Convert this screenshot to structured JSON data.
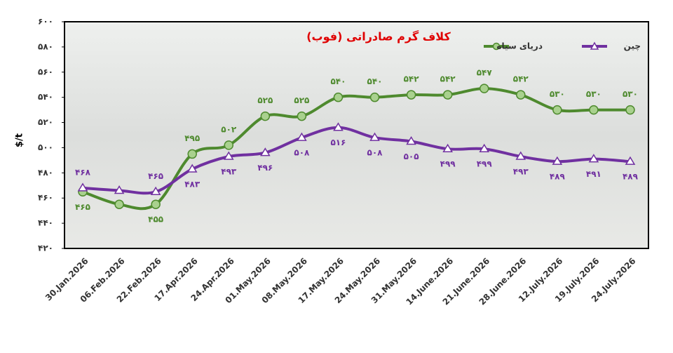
{
  "chart_data": {
    "type": "line",
    "title": "کلاف گرم صادراتی (فوب)",
    "y_label": "$/t",
    "categories": [
      "30.Jan.2026",
      "06.Feb.2026",
      "22.Feb.2026",
      "17.Apr.2026",
      "24.Apr.2026",
      "01.May.2026",
      "08.May.2026",
      "17.May.2026",
      "24.May.2026",
      "31.May.2026",
      "14.June.2026",
      "21.June.2026",
      "28.June.2026",
      "12.July.2026",
      "19.July.2026",
      "24.July.2026"
    ],
    "series": [
      {
        "name": "دریای سیاه",
        "color": "#4e8a2e",
        "marker": "circle",
        "values": [
          465,
          455,
          455,
          495,
          502,
          525,
          525,
          540,
          540,
          542,
          542,
          547,
          542,
          530,
          530,
          530
        ],
        "value_labels": [
          "۴۶۵",
          null,
          "۴۵۵",
          "۴۹۵",
          "۵۰۲",
          "۵۲۵",
          "۵۲۵",
          "۵۴۰",
          "۵۴۰",
          "۵۴۲",
          "۵۴۲",
          "۵۴۷",
          "۵۴۲",
          "۵۳۰",
          "۵۳۰",
          "۵۳۰"
        ]
      },
      {
        "name": "چین",
        "color": "#7030a0",
        "marker": "triangle",
        "values": [
          468,
          466,
          465,
          483,
          493,
          496,
          508,
          516,
          508,
          505,
          499,
          499,
          493,
          489,
          491,
          489
        ],
        "value_labels": [
          "۴۶۸",
          null,
          "۴۶۵",
          "۴۸۳",
          "۴۹۳",
          "۴۹۶",
          "۵۰۸",
          "۵۱۶",
          "۵۰۸",
          "۵۰۵",
          "۴۹۹",
          "۴۹۹",
          "۴۹۳",
          "۴۸۹",
          "۴۹۱",
          "۴۸۹"
        ]
      }
    ],
    "ylim": [
      420,
      600
    ],
    "yticks": [
      {
        "value": 420,
        "label": "۴۲۰"
      },
      {
        "value": 440,
        "label": "۴۴۰"
      },
      {
        "value": 460,
        "label": "۴۶۰"
      },
      {
        "value": 480,
        "label": "۴۸۰"
      },
      {
        "value": 500,
        "label": "۵۰۰"
      },
      {
        "value": 520,
        "label": "۵۲۰"
      },
      {
        "value": 540,
        "label": "۵۴۰"
      },
      {
        "value": 560,
        "label": "۵۶۰"
      },
      {
        "value": 580,
        "label": "۵۸۰"
      },
      {
        "value": 600,
        "label": "۶۰۰"
      }
    ],
    "grid": false
  }
}
